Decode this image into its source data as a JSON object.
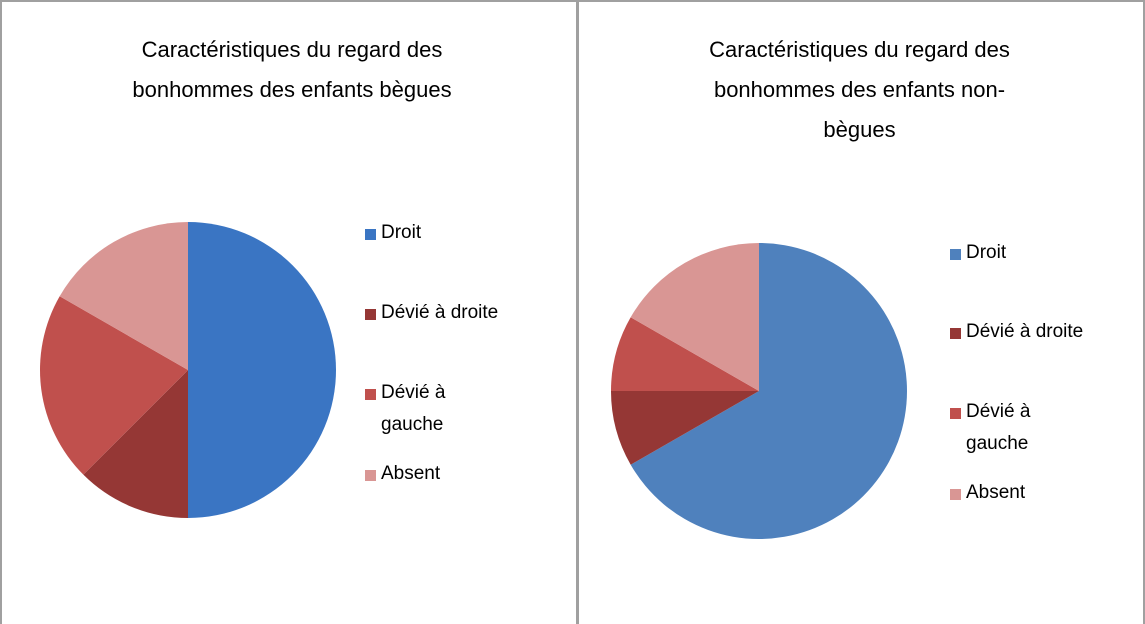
{
  "chart_data": [
    {
      "type": "pie",
      "title": "Caractéristiques du regard des bonhommes des enfants bègues",
      "categories": [
        "Droit",
        "Dévié à droite",
        "Dévié à gauche",
        "Absent"
      ],
      "values": [
        50,
        12.5,
        20.8,
        16.7
      ],
      "colors": [
        "#3a75c3",
        "#953735",
        "#c0504d",
        "#d99694"
      ],
      "legend": "right"
    },
    {
      "type": "pie",
      "title": "Caractéristiques du regard des bonhommes des enfants non-bègues",
      "categories": [
        "Droit",
        "Dévié à droite",
        "Dévié à gauche",
        "Absent"
      ],
      "values": [
        66.7,
        8.3,
        8.3,
        16.7
      ],
      "colors": [
        "#4f81bd",
        "#953735",
        "#c0504d",
        "#d99694"
      ],
      "legend": "right"
    }
  ]
}
